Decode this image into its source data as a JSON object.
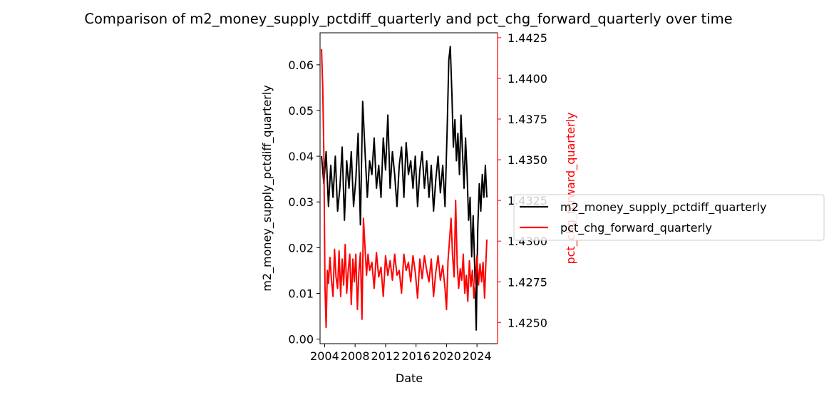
{
  "chart_data": {
    "type": "line",
    "title": "Comparison of m2_money_supply_pctdiff_quarterly and pct_chg_forward_quarterly over time",
    "xlabel": "Date",
    "xlim": [
      2003.4,
      2026.7
    ],
    "x_ticks": [
      2004,
      2008,
      2012,
      2016,
      2020,
      2024
    ],
    "x_tick_labels": [
      "2004",
      "2008",
      "2012",
      "2016",
      "2020",
      "2024"
    ],
    "grid": false,
    "legend_placement": "right, outside plot",
    "left_axis": {
      "label": "m2_money_supply_pctdiff_quarterly",
      "color": "#000000",
      "ylim": [
        -0.001,
        0.067
      ],
      "ticks": [
        0.0,
        0.01,
        0.02,
        0.03,
        0.04,
        0.05,
        0.06
      ],
      "tick_labels": [
        "0.00",
        "0.01",
        "0.02",
        "0.03",
        "0.04",
        "0.05",
        "0.06"
      ]
    },
    "right_axis": {
      "label": "pct_chg_forward_quarterly",
      "color": "#ff0000",
      "ylim": [
        1.4237,
        1.4428
      ],
      "ticks": [
        1.425,
        1.4275,
        1.43,
        1.4325,
        1.435,
        1.4375,
        1.44,
        1.4425
      ],
      "tick_labels": [
        "1.4250",
        "1.4275",
        "1.4300",
        "1.4325",
        "1.4350",
        "1.4375",
        "1.4400",
        "1.4425"
      ]
    },
    "series": [
      {
        "name": "m2_money_supply_pctdiff_quarterly",
        "axis": "left",
        "color": "#000000",
        "x": [
          2003.6,
          2003.9,
          2004.2,
          2004.5,
          2004.8,
          2005.1,
          2005.4,
          2005.7,
          2006.0,
          2006.3,
          2006.6,
          2006.9,
          2007.2,
          2007.5,
          2007.8,
          2008.1,
          2008.4,
          2008.7,
          2009.0,
          2009.3,
          2009.6,
          2009.9,
          2010.2,
          2010.5,
          2010.8,
          2011.1,
          2011.4,
          2011.7,
          2012.0,
          2012.3,
          2012.6,
          2012.9,
          2013.2,
          2013.5,
          2013.8,
          2014.1,
          2014.4,
          2014.7,
          2015.0,
          2015.3,
          2015.6,
          2015.9,
          2016.2,
          2016.5,
          2016.8,
          2017.1,
          2017.4,
          2017.7,
          2018.0,
          2018.3,
          2018.6,
          2018.9,
          2019.2,
          2019.5,
          2019.8,
          2020.1,
          2020.3,
          2020.5,
          2020.7,
          2020.9,
          2021.1,
          2021.3,
          2021.5,
          2021.7,
          2021.9,
          2022.1,
          2022.3,
          2022.5,
          2022.7,
          2022.9,
          2023.1,
          2023.3,
          2023.5,
          2023.7,
          2023.9,
          2024.1,
          2024.3,
          2024.5,
          2024.7,
          2024.9,
          2025.1,
          2025.3
        ],
        "y": [
          0.04,
          0.034,
          0.041,
          0.029,
          0.038,
          0.031,
          0.04,
          0.028,
          0.033,
          0.042,
          0.026,
          0.039,
          0.033,
          0.041,
          0.029,
          0.035,
          0.045,
          0.025,
          0.052,
          0.041,
          0.031,
          0.039,
          0.036,
          0.044,
          0.033,
          0.038,
          0.031,
          0.044,
          0.037,
          0.049,
          0.033,
          0.041,
          0.036,
          0.029,
          0.038,
          0.042,
          0.031,
          0.043,
          0.036,
          0.039,
          0.033,
          0.04,
          0.029,
          0.037,
          0.041,
          0.033,
          0.039,
          0.031,
          0.038,
          0.028,
          0.035,
          0.04,
          0.032,
          0.038,
          0.029,
          0.047,
          0.061,
          0.064,
          0.054,
          0.042,
          0.048,
          0.039,
          0.045,
          0.036,
          0.049,
          0.041,
          0.033,
          0.044,
          0.036,
          0.026,
          0.031,
          0.018,
          0.027,
          0.016,
          0.002,
          0.024,
          0.034,
          0.028,
          0.036,
          0.031,
          0.038,
          0.031
        ]
      },
      {
        "name": "pct_chg_forward_quarterly",
        "axis": "right",
        "color": "#ff0000",
        "x": [
          2003.6,
          2003.75,
          2003.9,
          2004.05,
          2004.2,
          2004.35,
          2004.5,
          2004.7,
          2004.9,
          2005.1,
          2005.3,
          2005.5,
          2005.7,
          2005.9,
          2006.1,
          2006.3,
          2006.5,
          2006.7,
          2006.9,
          2007.1,
          2007.3,
          2007.5,
          2007.7,
          2007.9,
          2008.1,
          2008.3,
          2008.5,
          2008.7,
          2008.9,
          2009.1,
          2009.3,
          2009.5,
          2009.7,
          2009.9,
          2010.2,
          2010.5,
          2010.8,
          2011.1,
          2011.4,
          2011.7,
          2012.0,
          2012.3,
          2012.6,
          2012.9,
          2013.2,
          2013.5,
          2013.8,
          2014.1,
          2014.4,
          2014.7,
          2015.0,
          2015.3,
          2015.6,
          2015.9,
          2016.2,
          2016.5,
          2016.8,
          2017.1,
          2017.4,
          2017.7,
          2018.0,
          2018.3,
          2018.6,
          2018.9,
          2019.2,
          2019.5,
          2019.8,
          2020.0,
          2020.2,
          2020.4,
          2020.6,
          2020.8,
          2021.0,
          2021.2,
          2021.4,
          2021.6,
          2021.8,
          2022.0,
          2022.2,
          2022.4,
          2022.6,
          2022.8,
          2023.0,
          2023.2,
          2023.4,
          2023.6,
          2023.8,
          2024.0,
          2024.2,
          2024.4,
          2024.6,
          2024.8,
          2025.0,
          2025.2,
          2025.3
        ],
        "y": [
          1.4418,
          1.4395,
          1.4355,
          1.4272,
          1.4247,
          1.4282,
          1.4274,
          1.429,
          1.4276,
          1.4266,
          1.4295,
          1.4278,
          1.4271,
          1.4294,
          1.4266,
          1.4289,
          1.4273,
          1.4298,
          1.4268,
          1.4282,
          1.4292,
          1.4261,
          1.4289,
          1.4275,
          1.4292,
          1.4258,
          1.4281,
          1.4293,
          1.4252,
          1.4314,
          1.4296,
          1.4279,
          1.4292,
          1.4282,
          1.4287,
          1.4271,
          1.4293,
          1.4278,
          1.4284,
          1.4266,
          1.4291,
          1.4279,
          1.4288,
          1.4276,
          1.4292,
          1.4279,
          1.4282,
          1.4268,
          1.4292,
          1.4282,
          1.4287,
          1.4275,
          1.4291,
          1.4281,
          1.4265,
          1.4289,
          1.4277,
          1.4291,
          1.4282,
          1.4275,
          1.4289,
          1.4266,
          1.4281,
          1.4291,
          1.4276,
          1.4285,
          1.4271,
          1.4258,
          1.4288,
          1.4301,
          1.4314,
          1.4291,
          1.4278,
          1.4325,
          1.4286,
          1.4271,
          1.4283,
          1.4276,
          1.4292,
          1.4268,
          1.4279,
          1.4263,
          1.4288,
          1.4272,
          1.4282,
          1.4265,
          1.4275,
          1.4291,
          1.4273,
          1.4286,
          1.4275,
          1.4287,
          1.4265,
          1.4291,
          1.4301
        ]
      }
    ]
  }
}
